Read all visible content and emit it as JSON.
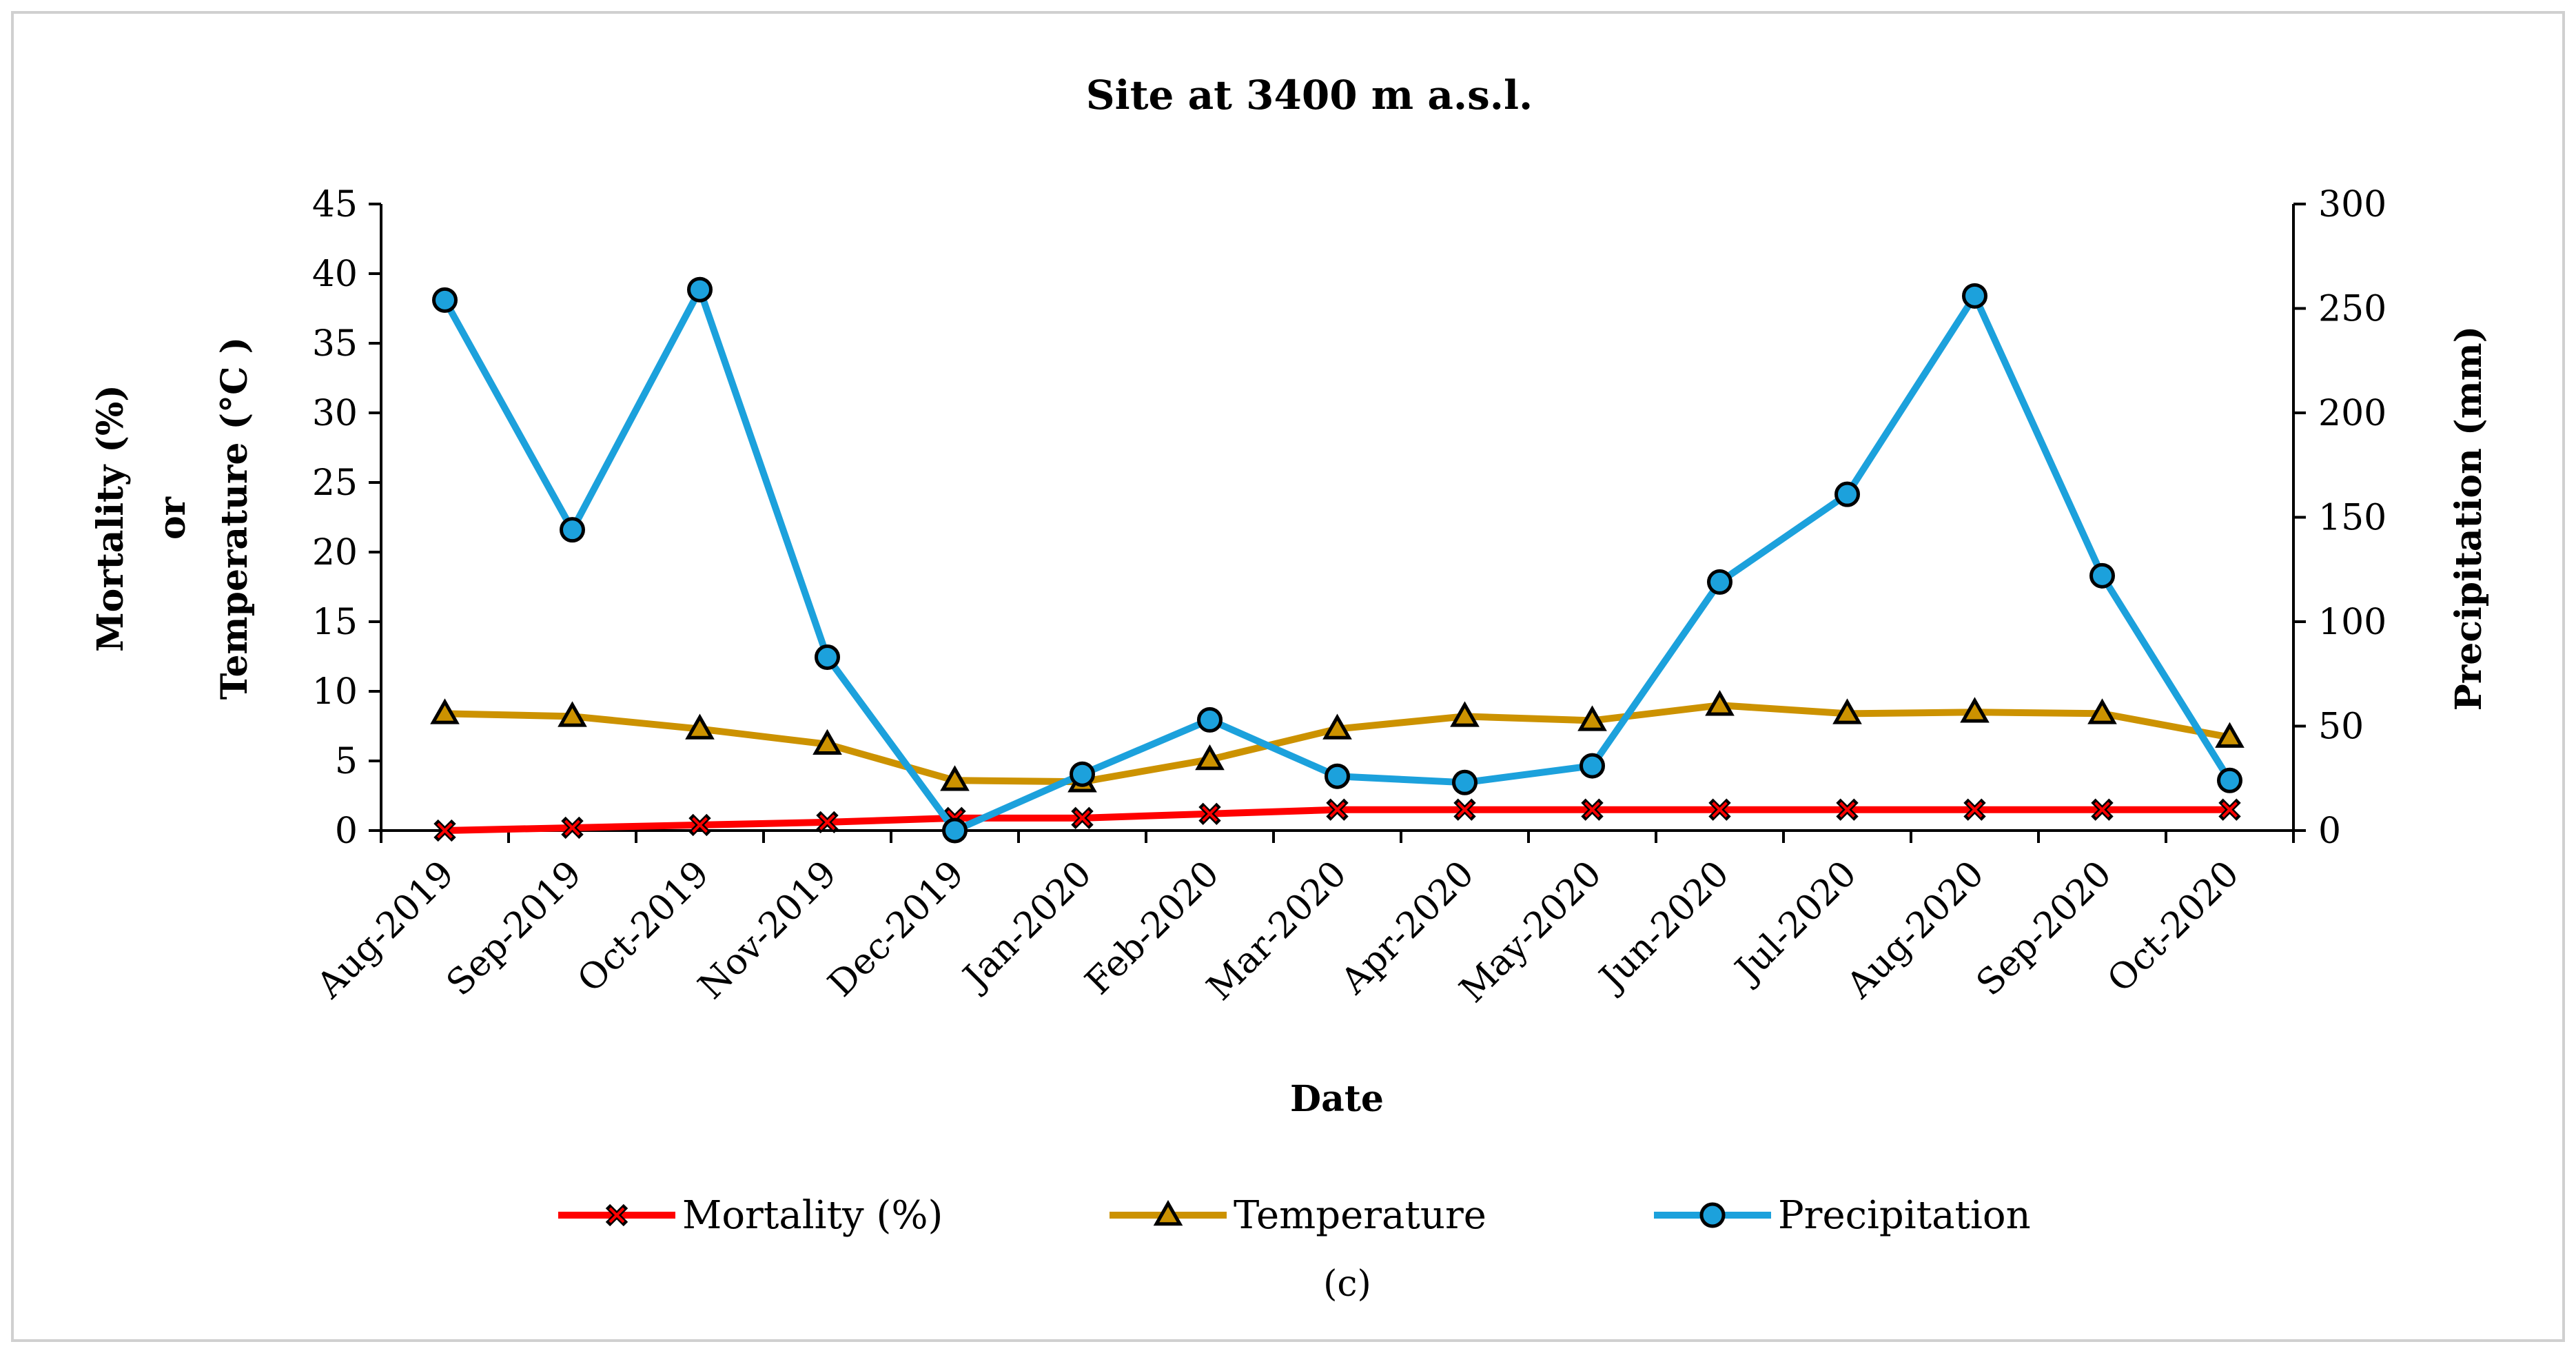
{
  "chart_data": {
    "type": "line",
    "title": "Site at 3400 m a.s.l.",
    "xlabel": "Date",
    "ylabel_left_lines": [
      "Mortality (%)",
      "or",
      "Temperature (°C )"
    ],
    "ylabel_right": "Precipitation (mm)",
    "caption": "(c)",
    "categories": [
      "Aug-2019",
      "Sep-2019",
      "Oct-2019",
      "Nov-2019",
      "Dec-2019",
      "Jan-2020",
      "Feb-2020",
      "Mar-2020",
      "Apr-2020",
      "May-2020",
      "Jun-2020",
      "Jul-2020",
      "Aug-2020",
      "Sep-2020",
      "Oct-2020"
    ],
    "ylim_left": [
      0,
      45
    ],
    "yticks_left": [
      0,
      5,
      10,
      15,
      20,
      25,
      30,
      35,
      40,
      45
    ],
    "ylim_right": [
      0,
      300
    ],
    "yticks_right": [
      0,
      50,
      100,
      150,
      200,
      250,
      300
    ],
    "grid": false,
    "legend_position": "bottom",
    "series": [
      {
        "name": "Mortality (%)",
        "axis": "left",
        "color": "#ff0000",
        "marker": "x",
        "values": [
          0,
          0.2,
          0.4,
          0.6,
          0.9,
          0.9,
          1.2,
          1.5,
          1.5,
          1.5,
          1.5,
          1.5,
          1.5,
          1.5,
          1.5
        ]
      },
      {
        "name": "Temperature",
        "axis": "left",
        "color": "#cc9200",
        "marker": "triangle",
        "values": [
          8.4,
          8.2,
          7.3,
          6.2,
          3.6,
          3.5,
          5.1,
          7.3,
          8.2,
          7.9,
          9.0,
          8.4,
          8.5,
          8.4,
          6.7
        ]
      },
      {
        "name": "Precipitation",
        "axis": "right",
        "color": "#1ca1dc",
        "marker": "circle",
        "values": [
          254,
          144,
          259,
          83,
          0,
          27,
          53,
          26,
          23,
          31,
          119,
          161,
          256,
          122,
          24
        ]
      }
    ]
  }
}
